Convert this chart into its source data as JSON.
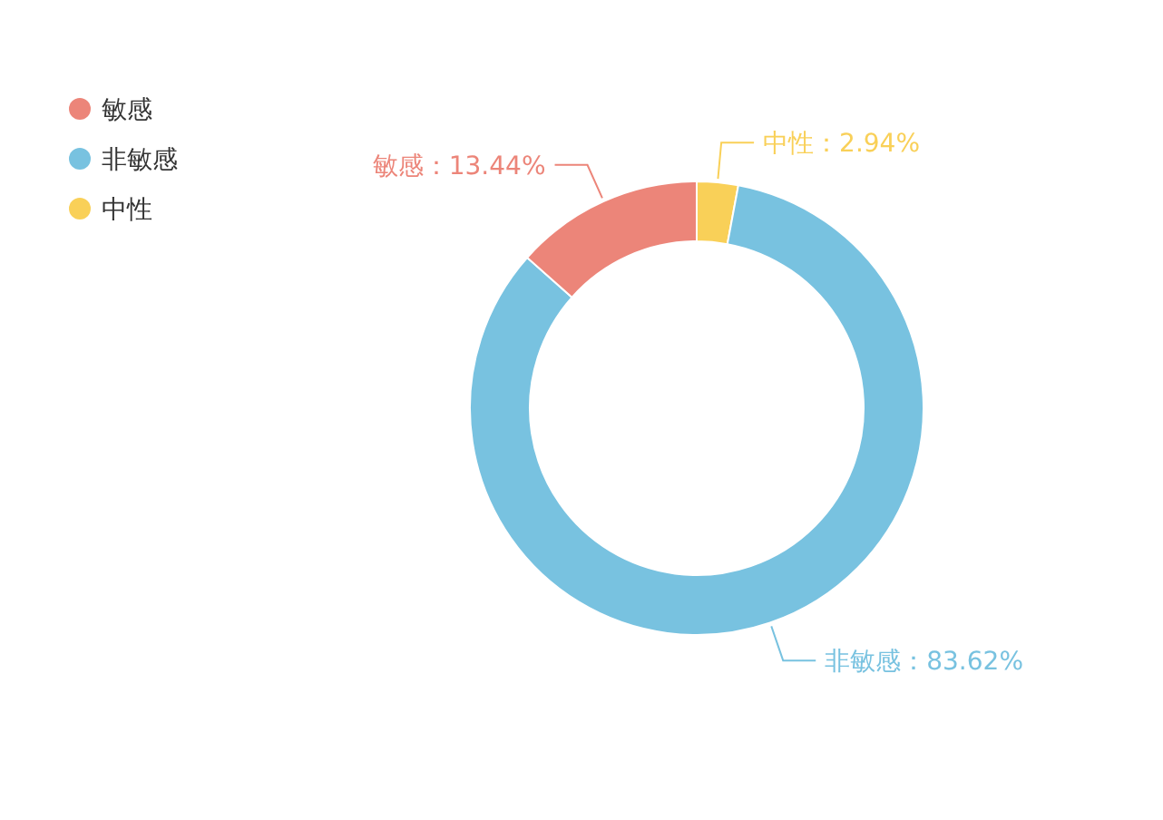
{
  "chart_data": {
    "type": "donut",
    "categories": [
      "敏感",
      "非敏感",
      "中性"
    ],
    "values": [
      13.44,
      83.62,
      2.94
    ],
    "colors": [
      "#ec8579",
      "#78c2e0",
      "#f9d058"
    ],
    "value_labels": [
      "敏感：13.44%",
      "非敏感：83.62%",
      "中性：2.94%"
    ],
    "legend": "top left"
  }
}
